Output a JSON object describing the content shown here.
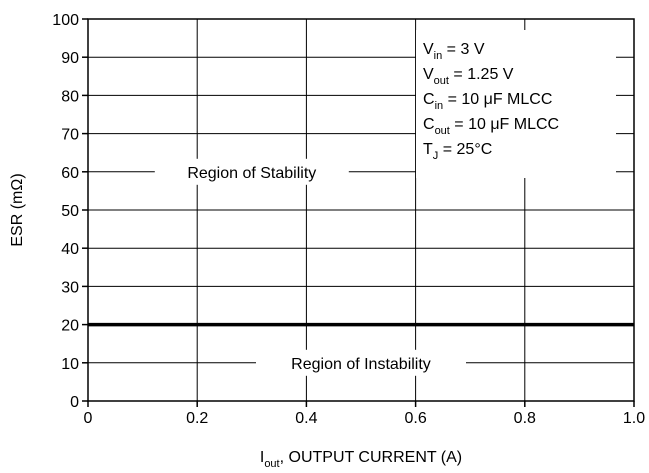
{
  "chart_data": {
    "type": "line",
    "title": "",
    "xlabel": {
      "main": "I",
      "sub": "out",
      "rest": ", OUTPUT CURRENT (A)"
    },
    "ylabel": "ESR (mΩ)",
    "xlim": [
      0,
      1.0
    ],
    "ylim": [
      0,
      100
    ],
    "x_ticks": [
      "0",
      "0.2",
      "0.4",
      "0.6",
      "0.8",
      "1.0"
    ],
    "y_ticks": [
      "0",
      "10",
      "20",
      "30",
      "40",
      "50",
      "60",
      "70",
      "80",
      "90",
      "100"
    ],
    "grid": true,
    "series": [
      {
        "x": [
          0,
          1.0
        ],
        "y": [
          20,
          20
        ]
      }
    ],
    "regions": {
      "stability": {
        "label": "Region of Stability",
        "x": 0.3,
        "y": 60
      },
      "instability": {
        "label": "Region of Instability",
        "x": 0.5,
        "y": 10
      }
    },
    "conditions": [
      {
        "main": "V",
        "sub": "in",
        "rest": " = 3 V"
      },
      {
        "main": "V",
        "sub": "out",
        "rest": " = 1.25 V"
      },
      {
        "main": "C",
        "sub": "in",
        "rest": " = 10 μF MLCC"
      },
      {
        "main": "C",
        "sub": "out",
        "rest": " = 10 μF MLCC"
      },
      {
        "main": "T",
        "sub": "J",
        "rest": " = 25°C"
      }
    ],
    "colors": {
      "line": "#000000",
      "grid": "#000000",
      "background": "#ffffff"
    }
  }
}
